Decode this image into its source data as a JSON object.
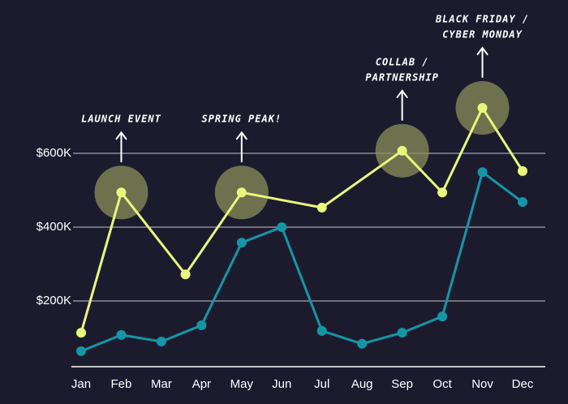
{
  "chart_data": {
    "type": "line",
    "xlim": [
      1,
      12
    ],
    "ylim": [
      0,
      1000000
    ],
    "xticks": [
      {
        "value": 1,
        "label": "Jan"
      },
      {
        "value": 2,
        "label": "Feb"
      },
      {
        "value": 3,
        "label": "Mar"
      },
      {
        "value": 4,
        "label": "Apr"
      },
      {
        "value": 5,
        "label": "May"
      },
      {
        "value": 6,
        "label": "Jun"
      },
      {
        "value": 7,
        "label": "Jul"
      },
      {
        "value": 8,
        "label": "Aug"
      },
      {
        "value": 9,
        "label": "Sep"
      },
      {
        "value": 10,
        "label": "Oct"
      },
      {
        "value": 11,
        "label": "Nov"
      },
      {
        "value": 12,
        "label": "Dec"
      }
    ],
    "yticks": [
      {
        "value": 200000,
        "label": "$200K"
      },
      {
        "value": 400000,
        "label": "$400K"
      },
      {
        "value": 600000,
        "label": "$600K"
      }
    ],
    "grid": true,
    "series": [
      {
        "color": "#e8f77c",
        "x": [
          1,
          2,
          3.6,
          5,
          7,
          9,
          10,
          11,
          12
        ],
        "values": [
          114000,
          494000,
          272000,
          494000,
          453000,
          607000,
          494000,
          723000,
          552000
        ]
      },
      {
        "color": "#1596a6",
        "x": [
          1,
          2,
          3,
          4,
          5,
          6,
          7,
          8,
          9,
          10,
          11,
          12
        ],
        "values": [
          64000,
          108000,
          90000,
          134000,
          358000,
          400000,
          119000,
          84000,
          114000,
          158000,
          549000,
          468000
        ]
      }
    ],
    "annotations": [
      {
        "x": 2,
        "lines": [
          "LAUNCH EVENT"
        ]
      },
      {
        "x": 5,
        "lines": [
          "SPRING PEAK!"
        ]
      },
      {
        "x": 9,
        "lines": [
          "COLLAB /",
          "PARTNERSHIP"
        ]
      },
      {
        "x": 11,
        "lines": [
          "BLACK FRIDAY /",
          "CYBER MONDAY"
        ]
      }
    ]
  }
}
